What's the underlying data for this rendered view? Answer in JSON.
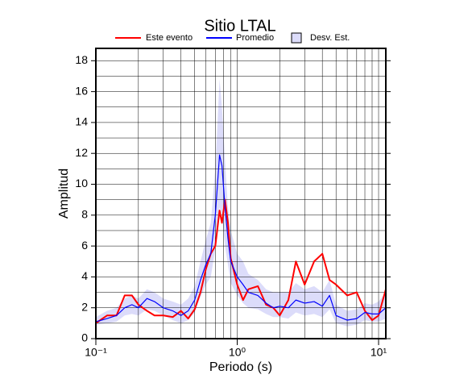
{
  "chart_data": {
    "type": "line",
    "title": "Sitio LTAL",
    "x_label": "Periodo (s)",
    "y_label": "Amplitud",
    "x_log": true,
    "grid": true,
    "xlim": [
      0.1,
      11.25
    ],
    "xticks": [
      {
        "value": 0.1,
        "label": "10⁻¹"
      },
      {
        "value": 1,
        "label": "10⁰"
      },
      {
        "value": 10,
        "label": "10¹"
      }
    ],
    "ylim": [
      0,
      18.8
    ],
    "yticks": [
      0,
      2,
      4,
      6,
      8,
      10,
      12,
      14,
      16,
      18
    ],
    "x": [
      0.1,
      0.12,
      0.14,
      0.16,
      0.18,
      0.2,
      0.23,
      0.26,
      0.3,
      0.35,
      0.4,
      0.45,
      0.5,
      0.55,
      0.6,
      0.65,
      0.7,
      0.75,
      0.78,
      0.82,
      0.86,
      0.9,
      1.0,
      1.1,
      1.2,
      1.4,
      1.6,
      1.8,
      2.0,
      2.3,
      2.6,
      3.0,
      3.5,
      4.0,
      4.5,
      5,
      6,
      7,
      8,
      9,
      10,
      11.25
    ],
    "band": {
      "name": "Desv. Est.",
      "color": "#dcdcfa",
      "upper": [
        1.4,
        1.8,
        2.0,
        2.6,
        2.8,
        2.6,
        3.2,
        3.0,
        2.6,
        2.4,
        2.2,
        2.6,
        3.4,
        5.0,
        6.4,
        7.5,
        11,
        16.8,
        15,
        11.5,
        8.5,
        7.0,
        5.5,
        5.0,
        4.2,
        3.8,
        3.2,
        3.0,
        3.0,
        3.0,
        3.6,
        3.2,
        3.4,
        3.0,
        3.8,
        2.2,
        1.8,
        1.9,
        2.3,
        2.2,
        2.4,
        3.0
      ],
      "lower": [
        0.9,
        1.0,
        1.1,
        1.5,
        1.6,
        1.5,
        1.9,
        1.8,
        1.5,
        1.2,
        1.0,
        1.2,
        1.7,
        2.7,
        3.5,
        4.0,
        5.8,
        8.5,
        8.0,
        6.0,
        4.8,
        3.6,
        2.8,
        2.3,
        2.0,
        1.9,
        1.6,
        1.4,
        1.4,
        1.3,
        1.7,
        1.5,
        1.6,
        1.4,
        1.9,
        1.0,
        0.8,
        0.9,
        1.2,
        1.1,
        1.1,
        1.3
      ]
    },
    "series": [
      {
        "name": "Este evento",
        "color": "#ff0000",
        "width": 2,
        "values": [
          1.0,
          1.5,
          1.5,
          2.8,
          2.8,
          2.2,
          1.8,
          1.5,
          1.5,
          1.4,
          1.8,
          1.3,
          1.9,
          3.0,
          4.5,
          5.5,
          6.0,
          8.3,
          7.5,
          9.0,
          7.5,
          5.2,
          3.5,
          2.5,
          3.2,
          3.4,
          2.2,
          2.0,
          1.5,
          2.5,
          5.0,
          3.5,
          5.0,
          5.5,
          3.8,
          3.5,
          2.8,
          3.0,
          1.8,
          1.2,
          1.5,
          3.2
        ]
      },
      {
        "name": "Promedio",
        "color": "#0000ff",
        "width": 1.2,
        "values": [
          1.1,
          1.3,
          1.5,
          2.0,
          2.2,
          2.0,
          2.6,
          2.4,
          2.0,
          1.8,
          1.5,
          1.8,
          2.5,
          3.8,
          4.8,
          5.5,
          8,
          11.9,
          11.2,
          8.5,
          6.5,
          5.0,
          4.0,
          3.5,
          3.0,
          2.8,
          2.3,
          2.0,
          2.1,
          2.0,
          2.5,
          2.3,
          2.4,
          2.1,
          2.8,
          1.5,
          1.2,
          1.3,
          1.7,
          1.6,
          1.6,
          2.0
        ]
      }
    ]
  }
}
